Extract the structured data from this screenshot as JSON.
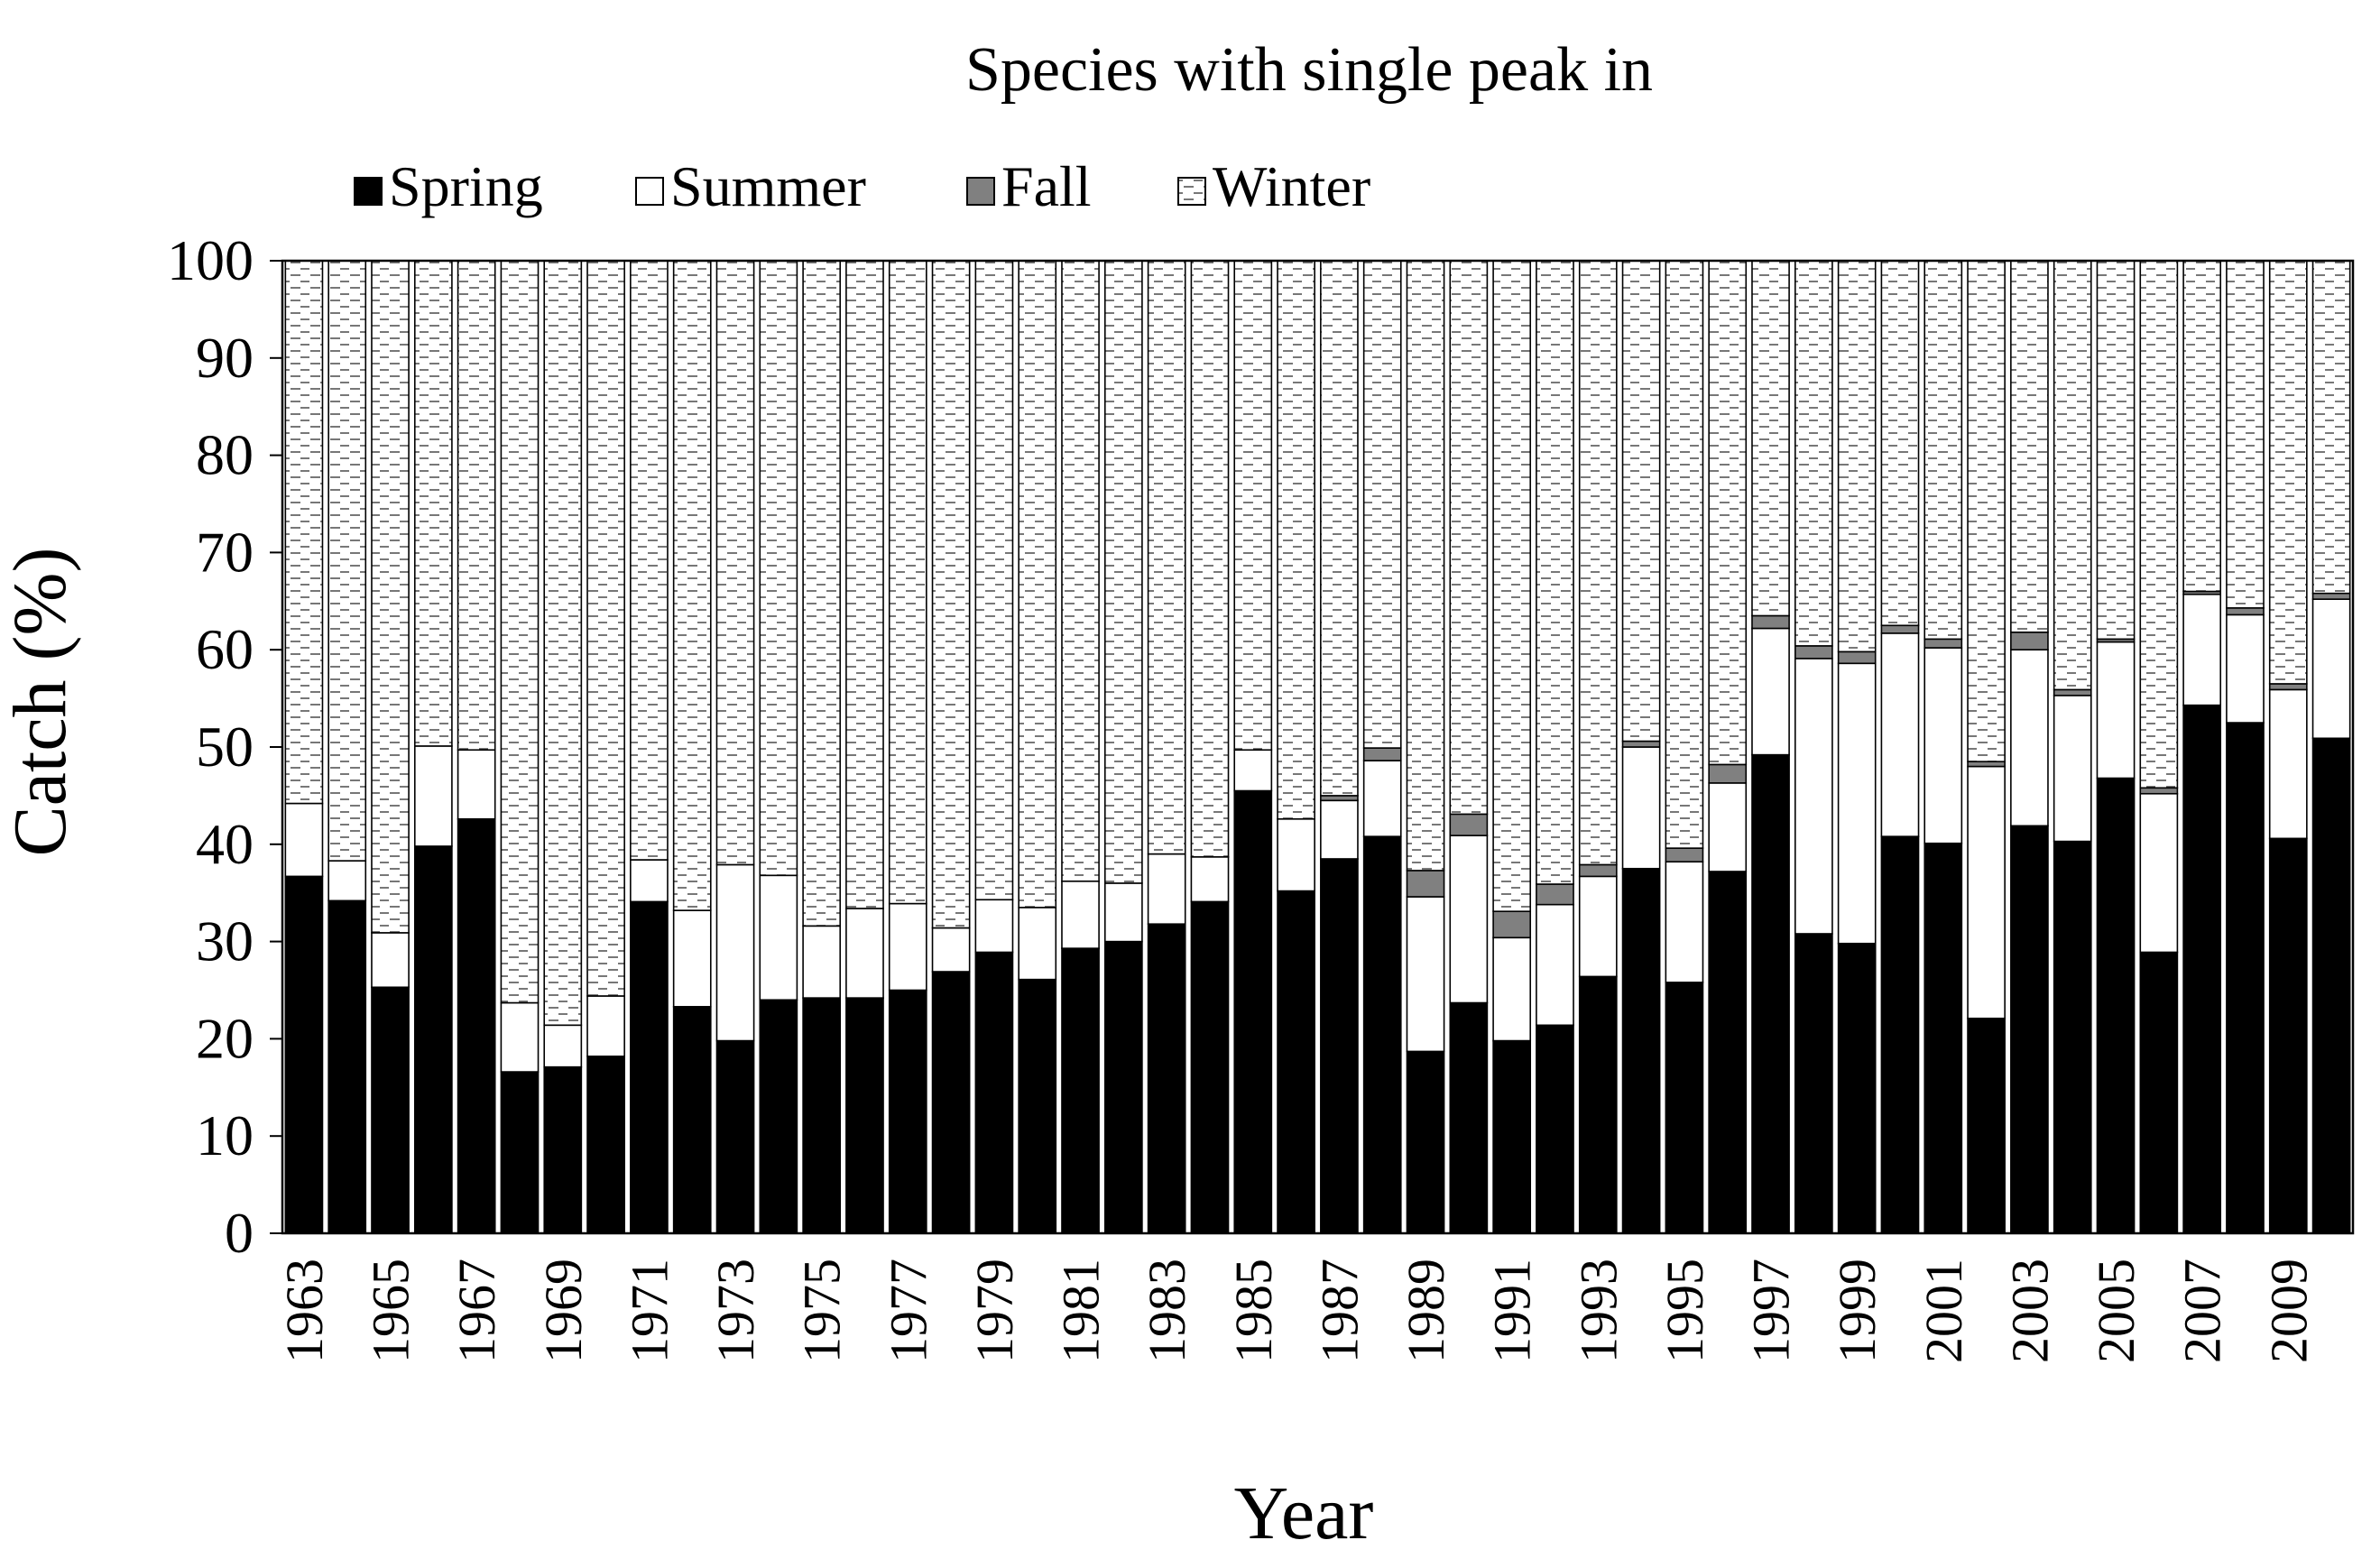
{
  "chart_data": {
    "type": "bar",
    "stacked": true,
    "title": "Species with single peak in",
    "xlabel": "Year",
    "ylabel": "Catch (%)",
    "ylim": [
      0,
      100
    ],
    "yticks": [
      0,
      10,
      20,
      30,
      40,
      50,
      60,
      70,
      80,
      90,
      100
    ],
    "legend_position": "top-left",
    "categories": [
      1963,
      1964,
      1965,
      1966,
      1967,
      1968,
      1969,
      1970,
      1971,
      1972,
      1973,
      1974,
      1975,
      1976,
      1977,
      1978,
      1979,
      1980,
      1981,
      1982,
      1983,
      1984,
      1985,
      1986,
      1987,
      1988,
      1989,
      1990,
      1991,
      1992,
      1993,
      1994,
      1995,
      1996,
      1997,
      1998,
      1999,
      2000,
      2001,
      2002,
      2003,
      2004,
      2005,
      2006,
      2007,
      2008,
      2009,
      2010
    ],
    "tick_labels": [
      "1963",
      "1965",
      "1967",
      "1969",
      "1971",
      "1973",
      "1975",
      "1977",
      "1979",
      "1981",
      "1983",
      "1985",
      "1987",
      "1989",
      "1991",
      "1993",
      "1995",
      "1997",
      "1999",
      "2001",
      "2003",
      "2005",
      "2007",
      "2009"
    ],
    "series": [
      {
        "name": "Spring",
        "color": "#000000",
        "pattern": "solid",
        "values": [
          36.7,
          34.2,
          25.3,
          39.8,
          42.6,
          16.6,
          17.1,
          18.2,
          34.1,
          23.3,
          19.8,
          24.0,
          24.2,
          24.2,
          25.0,
          26.9,
          28.9,
          26.1,
          29.3,
          30.0,
          31.8,
          34.1,
          45.5,
          35.2,
          38.5,
          40.8,
          18.7,
          23.7,
          19.8,
          21.4,
          26.4,
          37.5,
          25.8,
          37.2,
          49.2,
          30.8,
          29.8,
          40.8,
          40.1,
          22.1,
          41.9,
          40.3,
          46.8,
          28.9,
          54.3,
          52.5,
          40.6,
          50.9
        ]
      },
      {
        "name": "Summer",
        "color": "#ffffff",
        "pattern": "solid",
        "values": [
          7.5,
          4.1,
          5.6,
          10.3,
          7.1,
          7.1,
          4.3,
          6.2,
          4.3,
          9.9,
          18.1,
          12.8,
          7.4,
          9.2,
          8.9,
          4.5,
          5.4,
          7.4,
          6.9,
          6.0,
          7.2,
          4.6,
          4.2,
          7.4,
          6.0,
          7.8,
          15.9,
          17.2,
          10.6,
          12.4,
          10.3,
          12.5,
          12.4,
          9.1,
          13.0,
          28.3,
          28.8,
          20.9,
          20.1,
          25.9,
          18.1,
          15.0,
          14.0,
          16.3,
          11.4,
          11.1,
          15.3,
          14.3
        ]
      },
      {
        "name": "Fall",
        "color": "#808080",
        "pattern": "solid",
        "values": [
          0,
          0,
          0,
          0,
          0,
          0,
          0,
          0,
          0,
          0,
          0,
          0,
          0,
          0,
          0,
          0,
          0,
          0,
          0,
          0,
          0,
          0,
          0,
          0,
          0.5,
          1.3,
          2.7,
          2.2,
          2.7,
          2.1,
          1.2,
          0.6,
          1.4,
          1.9,
          1.3,
          1.3,
          1.2,
          0.8,
          0.9,
          0.5,
          1.8,
          0.6,
          0.3,
          0.6,
          0.3,
          0.7,
          0.6,
          0.6
        ]
      },
      {
        "name": "Winter",
        "color": "#ffffff",
        "pattern": "dashed",
        "values": [
          55.8,
          61.7,
          69.1,
          49.9,
          50.3,
          76.3,
          78.6,
          75.6,
          61.6,
          66.8,
          62.1,
          63.2,
          68.4,
          66.6,
          66.1,
          68.6,
          65.7,
          66.5,
          63.8,
          64.0,
          61.0,
          61.3,
          50.3,
          57.4,
          55.0,
          50.1,
          62.7,
          56.9,
          66.9,
          64.1,
          62.1,
          49.4,
          60.4,
          51.8,
          36.5,
          39.6,
          40.2,
          37.5,
          38.9,
          51.5,
          38.2,
          44.1,
          38.9,
          54.2,
          34.0,
          35.7,
          43.5,
          34.2
        ]
      }
    ]
  }
}
